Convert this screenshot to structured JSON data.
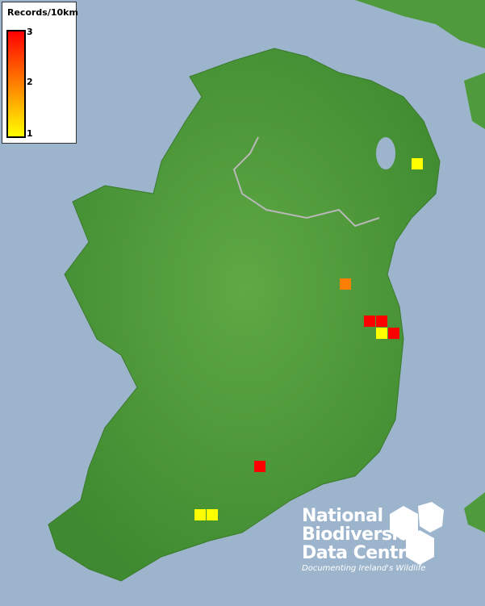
{
  "legend": {
    "title": "Records/10km",
    "max_label": "3",
    "mid_label": "2",
    "min_label": "1",
    "colors": {
      "low": "#ffff00",
      "mid": "#ff8000",
      "high": "#ff0000"
    }
  },
  "records": [
    1,
    2,
    3,
    3,
    1,
    3,
    3,
    1,
    1
  ],
  "colors": {
    "sea": "#9db4cd",
    "land": "#4f9a3c",
    "border": "#b8b8b8"
  },
  "logo": {
    "line1": "National",
    "line2": "Biodiversity",
    "line3": "Data Centre",
    "tagline": "Documenting Ireland's Wildlife"
  }
}
